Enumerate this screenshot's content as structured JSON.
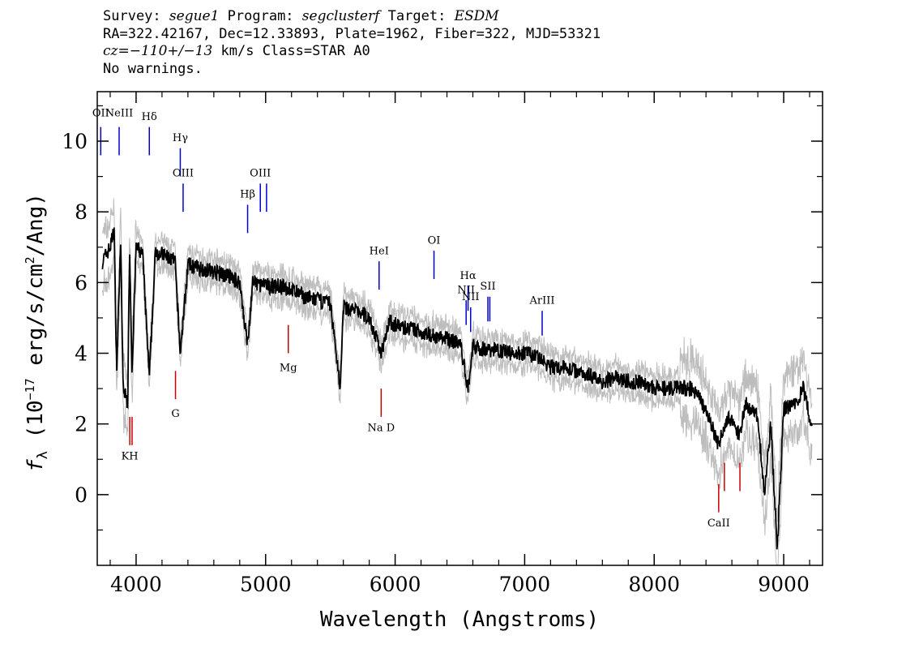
{
  "header": {
    "survey_label": "Survey:",
    "survey": "segue1",
    "program_label": "Program:",
    "program": "segclusterf",
    "target_label": "Target:",
    "target": "ESDM",
    "line2": "RA=322.42167, Dec=12.33893, Plate=1962, Fiber=322, MJD=53321",
    "cz_label": "cz=",
    "cz_value": "−110+/−13",
    "cz_rest": " km/s Class=STAR A0",
    "warnings": "No warnings."
  },
  "chart_data": {
    "type": "line",
    "xlabel": "Wavelength (Angstroms)",
    "ylabel_prefix": "f",
    "ylabel_sub": "λ",
    "ylabel_main": " (10",
    "ylabel_exp": "−17",
    "ylabel_units": " erg/s/cm",
    "ylabel_exp2": "2",
    "ylabel_end": "/Ang)",
    "xlim": [
      3700,
      9300
    ],
    "ylim": [
      -2,
      11.4
    ],
    "xticks": [
      4000,
      5000,
      6000,
      7000,
      8000,
      9000
    ],
    "yticks": [
      0,
      2,
      4,
      6,
      8,
      10
    ],
    "series": [
      {
        "x": [
          3740,
          3800,
          3830,
          3850,
          3880,
          3900,
          3935,
          3950,
          3968,
          4000,
          4050,
          4102,
          4150,
          4200,
          4250,
          4300,
          4341,
          4400,
          4500,
          4600,
          4700,
          4800,
          4861,
          4900,
          5000,
          5100,
          5200,
          5300,
          5400,
          5500,
          5577,
          5600,
          5700,
          5800,
          5892,
          5950,
          6000,
          6100,
          6200,
          6300,
          6400,
          6500,
          6563,
          6600,
          6700,
          6800,
          6900,
          7000,
          7100,
          7200,
          7300,
          7400,
          7500,
          7600,
          7700,
          7800,
          7900,
          8000,
          8100,
          8200,
          8300,
          8400,
          8498,
          8542,
          8600,
          8662,
          8700,
          8800,
          8850,
          8900,
          8950,
          9000,
          9100,
          9150,
          9200,
          9220
        ],
        "y": [
          6.6,
          7.0,
          7.5,
          3.5,
          7.2,
          3.0,
          2.6,
          7.0,
          3.5,
          7.0,
          6.8,
          3.3,
          6.9,
          6.8,
          6.7,
          6.6,
          4.0,
          6.5,
          6.4,
          6.3,
          6.2,
          6.0,
          4.2,
          6.0,
          5.9,
          5.9,
          5.8,
          5.6,
          5.5,
          5.4,
          3.0,
          5.3,
          5.2,
          5.0,
          4.0,
          4.9,
          4.8,
          4.7,
          4.6,
          4.5,
          4.4,
          4.3,
          3.0,
          4.2,
          4.1,
          4.1,
          4.0,
          4.0,
          3.9,
          3.6,
          3.6,
          3.5,
          3.4,
          3.2,
          3.3,
          3.2,
          3.2,
          3.0,
          3.0,
          3.0,
          3.0,
          2.4,
          1.4,
          2.0,
          2.2,
          1.6,
          2.6,
          2.2,
          0.0,
          2.0,
          -1.5,
          2.4,
          2.6,
          3.0,
          2.2,
          1.8
        ]
      }
    ],
    "lines": [
      {
        "label": "OII",
        "x": 3727,
        "y_bottom": 9.6,
        "y_top": 10.4,
        "label_y": 10.7,
        "color": "#0000cc"
      },
      {
        "label": "NeIII",
        "x": 3869,
        "y_bottom": 9.6,
        "y_top": 10.4,
        "label_y": 10.7,
        "color": "#0000cc"
      },
      {
        "label": "Hδ",
        "x": 4102,
        "y_bottom": 9.6,
        "y_top": 10.4,
        "label_y": 10.6,
        "color": "#0000cc"
      },
      {
        "label": "Hγ",
        "x": 4341,
        "y_bottom": 9.0,
        "y_top": 9.8,
        "label_y": 10.0,
        "color": "#0000cc"
      },
      {
        "label": "OIII",
        "x": 4363,
        "y_bottom": 8.0,
        "y_top": 8.8,
        "label_y": 9.0,
        "color": "#0000cc"
      },
      {
        "label": "Hβ",
        "x": 4861,
        "y_bottom": 7.4,
        "y_top": 8.2,
        "label_y": 8.4,
        "color": "#0000cc"
      },
      {
        "label": "OIII",
        "x": 4959,
        "y_bottom": 8.0,
        "y_top": 8.8,
        "label_y": 9.0,
        "color": "#0000cc"
      },
      {
        "label": "",
        "x": 5007,
        "y_bottom": 8.0,
        "y_top": 8.8,
        "label_y": 9.0,
        "color": "#0000cc"
      },
      {
        "label": "HeI",
        "x": 5876,
        "y_bottom": 5.8,
        "y_top": 6.6,
        "label_y": 6.8,
        "color": "#0000cc"
      },
      {
        "label": "OI",
        "x": 6300,
        "y_bottom": 6.1,
        "y_top": 6.9,
        "label_y": 7.1,
        "color": "#0000cc"
      },
      {
        "label": "NII",
        "x": 6548,
        "y_bottom": 4.8,
        "y_top": 5.5,
        "label_y": 5.7,
        "color": "#0000cc"
      },
      {
        "label": "Hα",
        "x": 6563,
        "y_bottom": 5.2,
        "y_top": 5.9,
        "label_y": 6.1,
        "color": "#0000cc"
      },
      {
        "label": "NII",
        "x": 6583,
        "y_bottom": 4.6,
        "y_top": 5.3,
        "label_y": 5.5,
        "color": "#0000cc"
      },
      {
        "label": "SII",
        "x": 6716,
        "y_bottom": 4.9,
        "y_top": 5.6,
        "label_y": 5.8,
        "color": "#0000cc"
      },
      {
        "label": "",
        "x": 6731,
        "y_bottom": 4.9,
        "y_top": 5.6,
        "label_y": 5.8,
        "color": "#0000cc"
      },
      {
        "label": "ArIII",
        "x": 7135,
        "y_bottom": 4.5,
        "y_top": 5.2,
        "label_y": 5.4,
        "color": "#0000cc"
      },
      {
        "label": "Mg",
        "x": 5175,
        "y_bottom": 4.0,
        "y_top": 4.8,
        "label_y": 3.5,
        "color": "#cc0000"
      },
      {
        "label": "G",
        "x": 4304,
        "y_bottom": 2.7,
        "y_top": 3.5,
        "label_y": 2.2,
        "color": "#cc0000"
      },
      {
        "label": "Na D",
        "x": 5892,
        "y_bottom": 2.2,
        "y_top": 3.0,
        "label_y": 1.8,
        "color": "#cc0000"
      },
      {
        "label": "KH",
        "x": 3951,
        "y_bottom": 1.4,
        "y_top": 2.2,
        "label_y": 1.0,
        "color": "#cc0000"
      },
      {
        "label": "",
        "x": 3969,
        "y_bottom": 1.4,
        "y_top": 2.2,
        "label_y": 1.0,
        "color": "#cc0000"
      },
      {
        "label": "CaII",
        "x": 8498,
        "y_bottom": -0.5,
        "y_top": 0.3,
        "label_y": -0.9,
        "color": "#cc0000"
      },
      {
        "label": "",
        "x": 8542,
        "y_bottom": 0.1,
        "y_top": 0.9,
        "label_y": -0.9,
        "color": "#cc0000"
      },
      {
        "label": "",
        "x": 8662,
        "y_bottom": 0.1,
        "y_top": 0.9,
        "label_y": -0.9,
        "color": "#cc0000"
      }
    ]
  }
}
